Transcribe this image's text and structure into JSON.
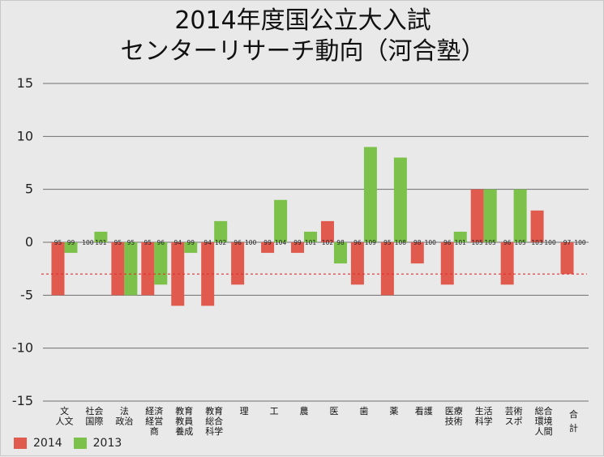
{
  "chart_data": {
    "type": "bar",
    "title_lines": [
      "2014年度国公立大入試",
      "センターリサーチ動向（河合塾）"
    ],
    "ylim": [
      -15,
      15
    ],
    "yticks": [
      15,
      10,
      5,
      0,
      -5,
      -10,
      -15
    ],
    "grid": true,
    "reference_line": -3,
    "legend_position": "bottom-left",
    "categories": [
      {
        "label": [
          "文",
          "人文"
        ],
        "highlight": false
      },
      {
        "label": [
          "社会",
          "国際"
        ],
        "highlight": false
      },
      {
        "label": [
          "法",
          "政治"
        ],
        "highlight": false
      },
      {
        "label": [
          "経済",
          "経営",
          "商"
        ],
        "highlight": false
      },
      {
        "label": [
          "教育",
          "教員",
          "養成"
        ],
        "highlight": false
      },
      {
        "label": [
          "教育",
          "総合",
          "科学"
        ],
        "highlight": false
      },
      {
        "label": [
          "理"
        ],
        "highlight": false
      },
      {
        "label": [
          "工"
        ],
        "highlight": false
      },
      {
        "label": [
          "農"
        ],
        "highlight": false
      },
      {
        "label": [
          "医"
        ],
        "highlight": false
      },
      {
        "label": [
          "歯"
        ],
        "highlight": false
      },
      {
        "label": [
          "薬"
        ],
        "highlight": false
      },
      {
        "label": [
          "看護"
        ],
        "highlight": false
      },
      {
        "label": [
          "医療",
          "技術"
        ],
        "highlight": false
      },
      {
        "label": [
          "生活",
          "科学"
        ],
        "highlight": false
      },
      {
        "label": [
          "芸術",
          "スポ"
        ],
        "highlight": false
      },
      {
        "label": [
          "総合",
          "環境",
          "人間"
        ],
        "highlight": false
      },
      {
        "label": [
          "合",
          "計"
        ],
        "highlight": true
      }
    ],
    "series": [
      {
        "name": "2014",
        "color": "#e05a4e",
        "values": [
          -5,
          0,
          -5,
          -5,
          -6,
          -6,
          -4,
          -1,
          -1,
          2,
          -4,
          -5,
          -2,
          -4,
          5,
          -4,
          3,
          -3
        ],
        "labels": [
          "95",
          "100",
          "95",
          "95",
          "94",
          "94",
          "96",
          "99",
          "99",
          "102",
          "96",
          "95",
          "98",
          "96",
          "105",
          "96",
          "103",
          "97"
        ]
      },
      {
        "name": "2013",
        "color": "#7cc24a",
        "values": [
          -1,
          1,
          -5,
          -4,
          -1,
          2,
          0,
          4,
          1,
          -2,
          9,
          8,
          0,
          1,
          5,
          5,
          0,
          null
        ],
        "labels": [
          "99",
          "101",
          "95",
          "96",
          "99",
          "102",
          "100",
          "104",
          "101",
          "98",
          "109",
          "108",
          "100",
          "101",
          "105",
          "105",
          "100",
          "100"
        ]
      }
    ]
  },
  "legend": [
    {
      "label": "2014",
      "color": "#e05a4e"
    },
    {
      "label": "2013",
      "color": "#7cc24a"
    }
  ],
  "colors": {
    "highlight": "#e0457b",
    "reference": "#e03030"
  }
}
